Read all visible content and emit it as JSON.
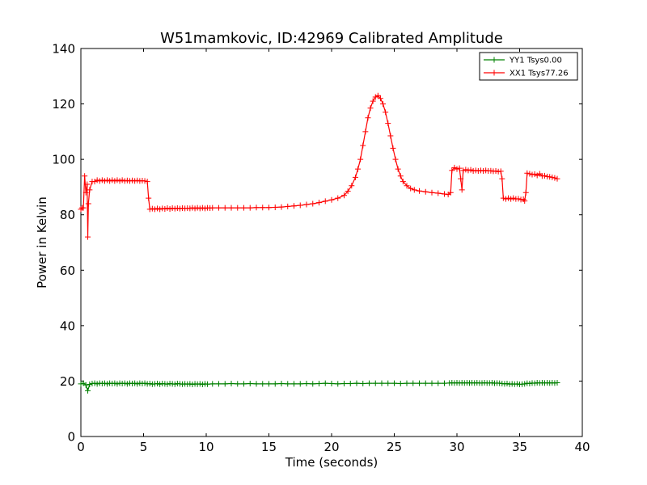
{
  "chart_data": {
    "type": "line",
    "title": "W51mamkovic, ID:42969 Calibrated Amplitude",
    "xlabel": "Time (seconds)",
    "ylabel": "Power in Kelvin",
    "xlim": [
      0,
      40
    ],
    "ylim": [
      0,
      140
    ],
    "xticks": [
      0,
      5,
      10,
      15,
      20,
      25,
      30,
      35,
      40
    ],
    "yticks": [
      0,
      20,
      40,
      60,
      80,
      100,
      120,
      140
    ],
    "grid": false,
    "legend_position": "top-right",
    "series": [
      {
        "name": "YY1 Tsys0.00",
        "color": "#008000",
        "points": [
          [
            0,
            19.0
          ],
          [
            0.2,
            19.2
          ],
          [
            0.4,
            18.6
          ],
          [
            0.55,
            16.5
          ],
          [
            0.7,
            18.8
          ],
          [
            0.9,
            19.1
          ],
          [
            1.1,
            19.2
          ],
          [
            1.3,
            19.0
          ],
          [
            1.5,
            19.2
          ],
          [
            1.7,
            19.1
          ],
          [
            1.9,
            19.2
          ],
          [
            2.1,
            19.0
          ],
          [
            2.3,
            19.2
          ],
          [
            2.5,
            19.1
          ],
          [
            2.7,
            19.2
          ],
          [
            2.9,
            19.0
          ],
          [
            3.1,
            19.2
          ],
          [
            3.3,
            19.1
          ],
          [
            3.5,
            19.2
          ],
          [
            3.7,
            19.0
          ],
          [
            3.9,
            19.2
          ],
          [
            4.1,
            19.1
          ],
          [
            4.3,
            19.2
          ],
          [
            4.5,
            19.0
          ],
          [
            4.7,
            19.2
          ],
          [
            4.9,
            19.1
          ],
          [
            5.1,
            19.2
          ],
          [
            5.3,
            19.0
          ],
          [
            5.5,
            19.1
          ],
          [
            5.7,
            18.9
          ],
          [
            5.9,
            19.0
          ],
          [
            6.1,
            19.1
          ],
          [
            6.3,
            18.9
          ],
          [
            6.5,
            19.1
          ],
          [
            6.7,
            19.0
          ],
          [
            6.9,
            18.9
          ],
          [
            7.1,
            19.1
          ],
          [
            7.3,
            19.0
          ],
          [
            7.5,
            18.9
          ],
          [
            7.7,
            19.1
          ],
          [
            7.9,
            19.0
          ],
          [
            8.1,
            18.9
          ],
          [
            8.3,
            19.0
          ],
          [
            8.5,
            18.9
          ],
          [
            8.7,
            19.0
          ],
          [
            8.9,
            18.8
          ],
          [
            9.1,
            19.0
          ],
          [
            9.3,
            18.9
          ],
          [
            9.5,
            19.0
          ],
          [
            9.7,
            18.8
          ],
          [
            9.9,
            19.0
          ],
          [
            10.1,
            18.9
          ],
          [
            10.5,
            19.0
          ],
          [
            11.0,
            19.0
          ],
          [
            11.5,
            19.0
          ],
          [
            12.0,
            19.1
          ],
          [
            12.5,
            19.0
          ],
          [
            13.0,
            19.0
          ],
          [
            13.5,
            19.1
          ],
          [
            14.0,
            19.0
          ],
          [
            14.5,
            19.0
          ],
          [
            15.0,
            19.0
          ],
          [
            15.5,
            19.0
          ],
          [
            16.0,
            19.1
          ],
          [
            16.5,
            19.0
          ],
          [
            17.0,
            19.0
          ],
          [
            17.5,
            19.0
          ],
          [
            18.0,
            19.1
          ],
          [
            18.5,
            19.0
          ],
          [
            19.0,
            19.1
          ],
          [
            19.5,
            19.2
          ],
          [
            20.0,
            19.1
          ],
          [
            20.5,
            19.0
          ],
          [
            21.0,
            19.1
          ],
          [
            21.5,
            19.1
          ],
          [
            22.0,
            19.2
          ],
          [
            22.5,
            19.1
          ],
          [
            23.0,
            19.2
          ],
          [
            23.5,
            19.2
          ],
          [
            24.0,
            19.2
          ],
          [
            24.5,
            19.2
          ],
          [
            25.0,
            19.2
          ],
          [
            25.5,
            19.1
          ],
          [
            26.0,
            19.2
          ],
          [
            26.5,
            19.2
          ],
          [
            27.0,
            19.2
          ],
          [
            27.5,
            19.2
          ],
          [
            28.0,
            19.2
          ],
          [
            28.5,
            19.2
          ],
          [
            29.0,
            19.2
          ],
          [
            29.4,
            19.3
          ],
          [
            29.6,
            19.4
          ],
          [
            29.8,
            19.3
          ],
          [
            30.0,
            19.4
          ],
          [
            30.2,
            19.3
          ],
          [
            30.4,
            19.4
          ],
          [
            30.6,
            19.3
          ],
          [
            30.8,
            19.4
          ],
          [
            31.0,
            19.3
          ],
          [
            31.2,
            19.4
          ],
          [
            31.4,
            19.3
          ],
          [
            31.6,
            19.4
          ],
          [
            31.8,
            19.3
          ],
          [
            32.0,
            19.3
          ],
          [
            32.2,
            19.4
          ],
          [
            32.4,
            19.3
          ],
          [
            32.6,
            19.3
          ],
          [
            32.8,
            19.4
          ],
          [
            33.0,
            19.2
          ],
          [
            33.2,
            19.3
          ],
          [
            33.4,
            19.2
          ],
          [
            33.6,
            19.1
          ],
          [
            33.8,
            19.0
          ],
          [
            34.0,
            19.1
          ],
          [
            34.2,
            18.9
          ],
          [
            34.4,
            19.0
          ],
          [
            34.6,
            18.9
          ],
          [
            34.8,
            19.0
          ],
          [
            35.0,
            18.8
          ],
          [
            35.2,
            18.9
          ],
          [
            35.4,
            19.0
          ],
          [
            35.6,
            19.2
          ],
          [
            35.8,
            19.1
          ],
          [
            36.0,
            19.3
          ],
          [
            36.2,
            19.2
          ],
          [
            36.4,
            19.4
          ],
          [
            36.6,
            19.3
          ],
          [
            36.8,
            19.4
          ],
          [
            37.0,
            19.3
          ],
          [
            37.2,
            19.4
          ],
          [
            37.4,
            19.3
          ],
          [
            37.6,
            19.4
          ],
          [
            37.8,
            19.3
          ],
          [
            38.0,
            19.4
          ]
        ]
      },
      {
        "name": "XX1 Tsys77.26",
        "color": "#ff0000",
        "points": [
          [
            0,
            82
          ],
          [
            0.1,
            82.5
          ],
          [
            0.2,
            82.5
          ],
          [
            0.3,
            94
          ],
          [
            0.4,
            88
          ],
          [
            0.5,
            91
          ],
          [
            0.55,
            72
          ],
          [
            0.6,
            84
          ],
          [
            0.7,
            89
          ],
          [
            0.9,
            92
          ],
          [
            1.1,
            92
          ],
          [
            1.3,
            92.5
          ],
          [
            1.5,
            92.2
          ],
          [
            1.7,
            92.5
          ],
          [
            1.9,
            92.2
          ],
          [
            2.1,
            92.5
          ],
          [
            2.3,
            92.2
          ],
          [
            2.5,
            92.5
          ],
          [
            2.7,
            92.2
          ],
          [
            2.9,
            92.5
          ],
          [
            3.1,
            92.2
          ],
          [
            3.3,
            92.5
          ],
          [
            3.5,
            92.2
          ],
          [
            3.7,
            92.4
          ],
          [
            3.9,
            92.2
          ],
          [
            4.1,
            92.4
          ],
          [
            4.3,
            92.2
          ],
          [
            4.5,
            92.4
          ],
          [
            4.7,
            92.2
          ],
          [
            4.9,
            92.3
          ],
          [
            5.1,
            92.2
          ],
          [
            5.3,
            92.0
          ],
          [
            5.4,
            86
          ],
          [
            5.5,
            82
          ],
          [
            5.7,
            82.2
          ],
          [
            5.9,
            82
          ],
          [
            6.1,
            82.3
          ],
          [
            6.3,
            82
          ],
          [
            6.5,
            82.3
          ],
          [
            6.7,
            82.1
          ],
          [
            6.9,
            82.4
          ],
          [
            7.1,
            82.1
          ],
          [
            7.3,
            82.4
          ],
          [
            7.5,
            82.2
          ],
          [
            7.7,
            82.4
          ],
          [
            7.9,
            82.2
          ],
          [
            8.1,
            82.4
          ],
          [
            8.3,
            82.3
          ],
          [
            8.5,
            82.4
          ],
          [
            8.7,
            82.3
          ],
          [
            8.9,
            82.5
          ],
          [
            9.1,
            82.3
          ],
          [
            9.3,
            82.5
          ],
          [
            9.5,
            82.3
          ],
          [
            9.7,
            82.5
          ],
          [
            9.9,
            82.3
          ],
          [
            10.1,
            82.5
          ],
          [
            10.3,
            82.4
          ],
          [
            10.5,
            82.5
          ],
          [
            11.0,
            82.5
          ],
          [
            11.5,
            82.5
          ],
          [
            12.0,
            82.5
          ],
          [
            12.5,
            82.5
          ],
          [
            13.0,
            82.5
          ],
          [
            13.5,
            82.5
          ],
          [
            14.0,
            82.6
          ],
          [
            14.5,
            82.6
          ],
          [
            15.0,
            82.6
          ],
          [
            15.5,
            82.7
          ],
          [
            16.0,
            82.8
          ],
          [
            16.5,
            83.0
          ],
          [
            17.0,
            83.2
          ],
          [
            17.5,
            83.4
          ],
          [
            18.0,
            83.7
          ],
          [
            18.5,
            84.0
          ],
          [
            19.0,
            84.4
          ],
          [
            19.5,
            84.9
          ],
          [
            20.0,
            85.4
          ],
          [
            20.5,
            86.0
          ],
          [
            21.0,
            87.0
          ],
          [
            21.3,
            88.5
          ],
          [
            21.6,
            90.5
          ],
          [
            21.9,
            93.5
          ],
          [
            22.1,
            96.5
          ],
          [
            22.3,
            100
          ],
          [
            22.5,
            105
          ],
          [
            22.7,
            110
          ],
          [
            22.9,
            115
          ],
          [
            23.1,
            118.5
          ],
          [
            23.3,
            121
          ],
          [
            23.5,
            122.5
          ],
          [
            23.7,
            123
          ],
          [
            23.9,
            122
          ],
          [
            24.1,
            120
          ],
          [
            24.3,
            117
          ],
          [
            24.5,
            113
          ],
          [
            24.7,
            108.5
          ],
          [
            24.9,
            104
          ],
          [
            25.1,
            100
          ],
          [
            25.3,
            96.5
          ],
          [
            25.5,
            94
          ],
          [
            25.7,
            92
          ],
          [
            26.0,
            90.5
          ],
          [
            26.3,
            89.5
          ],
          [
            26.6,
            89
          ],
          [
            27.0,
            88.6
          ],
          [
            27.5,
            88.3
          ],
          [
            28.0,
            88.0
          ],
          [
            28.5,
            87.8
          ],
          [
            29.0,
            87.5
          ],
          [
            29.3,
            87.3
          ],
          [
            29.5,
            88
          ],
          [
            29.6,
            96
          ],
          [
            29.8,
            97
          ],
          [
            30.0,
            96.5
          ],
          [
            30.2,
            96.8
          ],
          [
            30.3,
            93
          ],
          [
            30.4,
            89
          ],
          [
            30.5,
            96
          ],
          [
            30.7,
            96.3
          ],
          [
            30.9,
            96
          ],
          [
            31.1,
            96.2
          ],
          [
            31.3,
            95.8
          ],
          [
            31.5,
            96
          ],
          [
            31.7,
            95.8
          ],
          [
            31.9,
            96
          ],
          [
            32.1,
            95.8
          ],
          [
            32.3,
            96
          ],
          [
            32.5,
            95.8
          ],
          [
            32.7,
            95.9
          ],
          [
            32.9,
            95.7
          ],
          [
            33.1,
            95.8
          ],
          [
            33.3,
            95.6
          ],
          [
            33.5,
            95.7
          ],
          [
            33.6,
            93
          ],
          [
            33.7,
            86
          ],
          [
            33.9,
            85.7
          ],
          [
            34.1,
            86
          ],
          [
            34.3,
            85.7
          ],
          [
            34.5,
            86
          ],
          [
            34.7,
            85.7
          ],
          [
            34.9,
            85.8
          ],
          [
            35.1,
            85.5
          ],
          [
            35.3,
            85.6
          ],
          [
            35.4,
            85
          ],
          [
            35.5,
            88
          ],
          [
            35.6,
            95
          ],
          [
            35.8,
            94.8
          ],
          [
            36.0,
            94.5
          ],
          [
            36.2,
            94.7
          ],
          [
            36.4,
            94.2
          ],
          [
            36.6,
            94.8
          ],
          [
            36.8,
            94.0
          ],
          [
            37.0,
            94.1
          ],
          [
            37.2,
            93.8
          ],
          [
            37.4,
            93.7
          ],
          [
            37.6,
            93.5
          ],
          [
            37.8,
            93.3
          ],
          [
            38.0,
            93.0
          ]
        ]
      }
    ]
  }
}
